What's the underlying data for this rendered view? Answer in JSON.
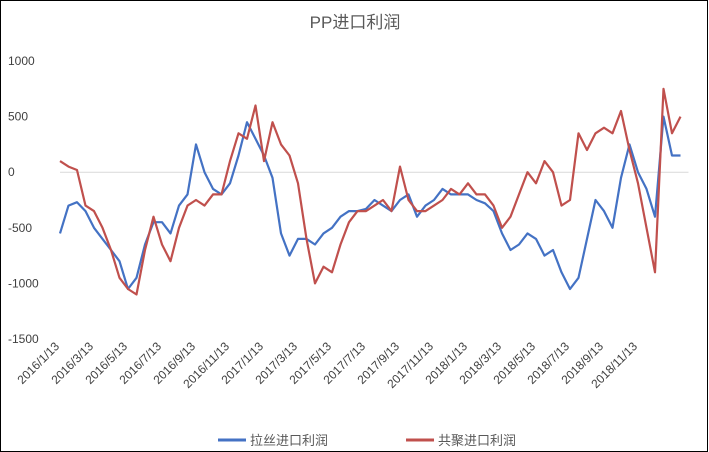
{
  "chart_data": {
    "type": "line",
    "title": "PP进口利润",
    "categories": [
      "2016/1/13",
      null,
      null,
      null,
      "2016/3/13",
      null,
      null,
      null,
      "2016/5/13",
      null,
      null,
      null,
      "2016/7/13",
      null,
      null,
      null,
      "2016/9/13",
      null,
      null,
      null,
      "2016/11/13",
      null,
      null,
      null,
      "2017/1/13",
      null,
      null,
      null,
      "2017/3/13",
      null,
      null,
      null,
      "2017/5/13",
      null,
      null,
      null,
      "2017/7/13",
      null,
      null,
      null,
      "2017/9/13",
      null,
      null,
      null,
      "2017/11/13",
      null,
      null,
      null,
      "2018/1/13",
      null,
      null,
      null,
      "2018/3/13",
      null,
      null,
      null,
      "2018/5/13",
      null,
      null,
      null,
      "2018/7/13",
      null,
      null,
      null,
      "2018/9/13",
      null,
      null,
      null,
      "2018/11/13",
      null,
      null,
      null,
      null,
      null
    ],
    "series": [
      {
        "name": "拉丝进口利润",
        "color": "#4472c4",
        "values": [
          -550,
          -300,
          -270,
          -350,
          -500,
          -600,
          -700,
          -800,
          -1050,
          -950,
          -650,
          -450,
          -450,
          -550,
          -300,
          -200,
          250,
          0,
          -150,
          -200,
          -100,
          150,
          450,
          300,
          150,
          -50,
          -550,
          -750,
          -600,
          -600,
          -650,
          -550,
          -500,
          -400,
          -350,
          -350,
          -330,
          -250,
          -300,
          -350,
          -250,
          -200,
          -400,
          -300,
          -250,
          -150,
          -200,
          -200,
          -200,
          -250,
          -280,
          -350,
          -550,
          -700,
          -650,
          -550,
          -600,
          -750,
          -700,
          -900,
          -1050,
          -950,
          -600,
          -250,
          -350,
          -500,
          -50,
          250,
          0,
          -150,
          -400,
          500,
          150,
          150
        ]
      },
      {
        "name": "共聚进口利润",
        "color": "#c0504d",
        "values": [
          100,
          50,
          20,
          -300,
          -350,
          -500,
          -700,
          -950,
          -1050,
          -1100,
          -700,
          -400,
          -650,
          -800,
          -500,
          -300,
          -250,
          -300,
          -200,
          -200,
          100,
          350,
          300,
          600,
          100,
          450,
          250,
          150,
          -100,
          -600,
          -1000,
          -850,
          -900,
          -650,
          -450,
          -350,
          -350,
          -300,
          -250,
          -350,
          50,
          -250,
          -350,
          -350,
          -300,
          -250,
          -150,
          -200,
          -100,
          -200,
          -200,
          -300,
          -500,
          -400,
          -200,
          0,
          -100,
          100,
          0,
          -300,
          -250,
          350,
          200,
          350,
          400,
          350,
          550,
          200,
          -100,
          -500,
          -900,
          750,
          350,
          500
        ]
      }
    ],
    "ylim": [
      -1500,
      1000
    ],
    "yticks": [
      1000,
      500,
      0,
      -500,
      -1000,
      -1500
    ]
  }
}
